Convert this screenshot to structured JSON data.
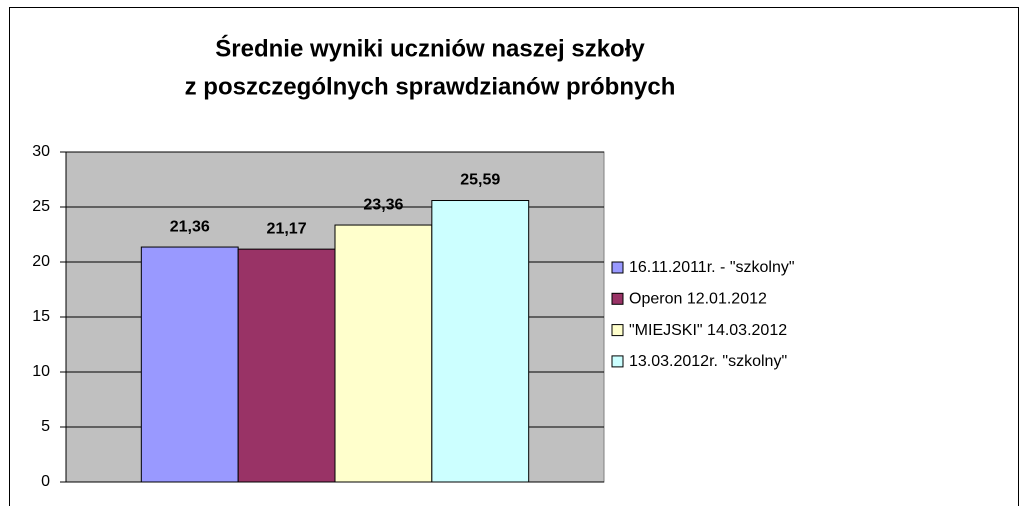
{
  "chart_data": {
    "type": "bar",
    "title": [
      "Średnie wyniki uczniów naszej szkoły",
      "z poszczególnych sprawdzianów próbnych"
    ],
    "categories": [
      null
    ],
    "series": [
      {
        "name": "16.11.2011r. - \"szkolny\"",
        "color": "#9999ff",
        "values": [
          21.36
        ],
        "value_labels": [
          "21,36"
        ]
      },
      {
        "name": "Operon 12.01.2012",
        "color": "#993366",
        "values": [
          21.17
        ],
        "value_labels": [
          "21,17"
        ]
      },
      {
        "name": "\"MIEJSKI\" 14.03.2012",
        "color": "#ffffcc",
        "values": [
          23.36
        ],
        "value_labels": [
          "23,36"
        ]
      },
      {
        "name": "13.03.2012r. \"szkolny\"",
        "color": "#ccffff",
        "values": [
          25.59
        ],
        "value_labels": [
          "25,59"
        ]
      }
    ],
    "ylim": [
      0,
      30
    ],
    "yticks": [
      0,
      5,
      10,
      15,
      20,
      25,
      30
    ],
    "grid": true,
    "legend": "right"
  }
}
